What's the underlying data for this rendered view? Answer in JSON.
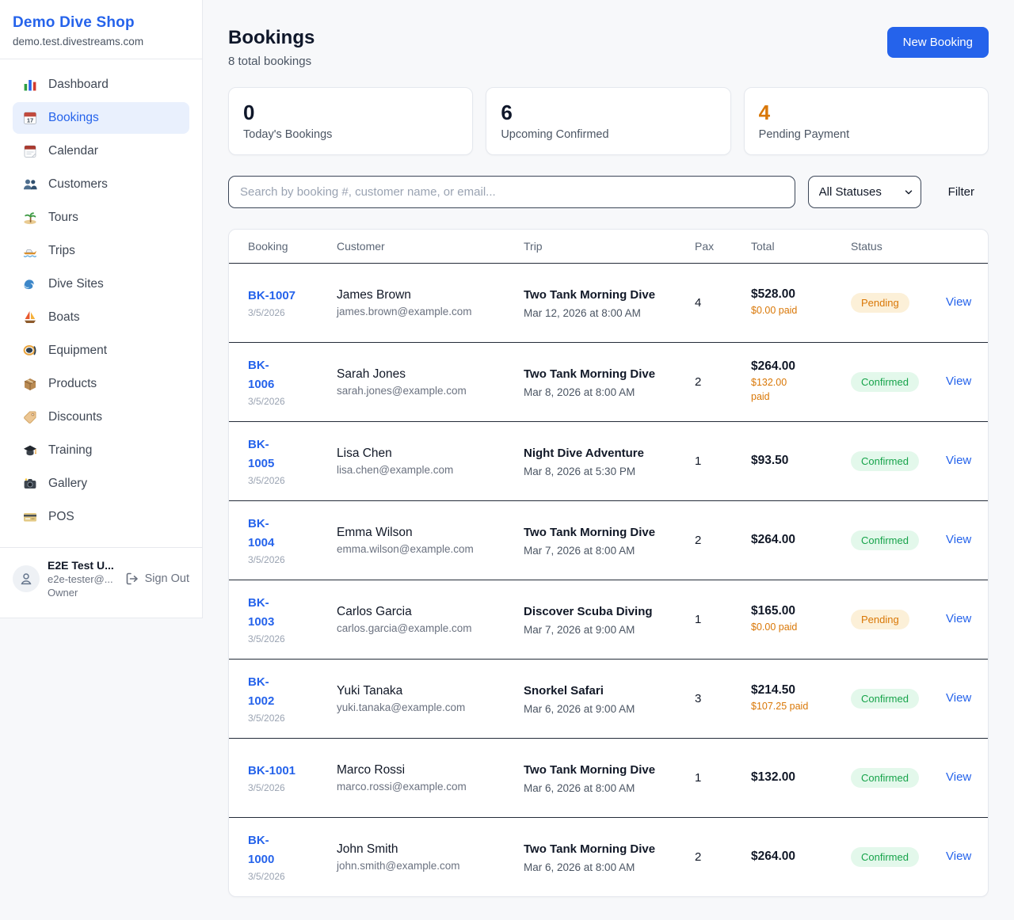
{
  "sidebar": {
    "brand": {
      "name": "Demo Dive Shop",
      "domain": "demo.test.divestreams.com"
    },
    "nav": [
      {
        "label": "Dashboard",
        "icon": "bar-chart-icon",
        "active": false
      },
      {
        "label": "Bookings",
        "icon": "calendar-date-icon",
        "active": true
      },
      {
        "label": "Calendar",
        "icon": "calendar-icon",
        "active": false
      },
      {
        "label": "Customers",
        "icon": "people-icon",
        "active": false
      },
      {
        "label": "Tours",
        "icon": "island-icon",
        "active": false
      },
      {
        "label": "Trips",
        "icon": "speedboat-icon",
        "active": false
      },
      {
        "label": "Dive Sites",
        "icon": "wave-icon",
        "active": false
      },
      {
        "label": "Boats",
        "icon": "sailboat-icon",
        "active": false
      },
      {
        "label": "Equipment",
        "icon": "diving-mask-icon",
        "active": false
      },
      {
        "label": "Products",
        "icon": "package-icon",
        "active": false
      },
      {
        "label": "Discounts",
        "icon": "tag-icon",
        "active": false
      },
      {
        "label": "Training",
        "icon": "graduation-cap-icon",
        "active": false
      },
      {
        "label": "Gallery",
        "icon": "camera-icon",
        "active": false
      },
      {
        "label": "POS",
        "icon": "credit-card-icon",
        "active": false
      }
    ],
    "user": {
      "name": "E2E Test U...",
      "email": "e2e-tester@...",
      "role": "Owner",
      "sign_out_label": "Sign Out"
    }
  },
  "header": {
    "title": "Bookings",
    "subtitle": "8 total bookings",
    "new_booking_label": "New Booking"
  },
  "stats": [
    {
      "value": "0",
      "label": "Today's Bookings",
      "color": "#0f172a"
    },
    {
      "value": "6",
      "label": "Upcoming Confirmed",
      "color": "#0f172a"
    },
    {
      "value": "4",
      "label": "Pending Payment",
      "color": "#d97706"
    }
  ],
  "filters": {
    "search_placeholder": "Search by booking #, customer name, or email...",
    "status_selected": "All Statuses",
    "filter_label": "Filter"
  },
  "table": {
    "columns": [
      "Booking",
      "Customer",
      "Trip",
      "Pax",
      "Total",
      "Status"
    ],
    "view_label": "View",
    "rows": [
      {
        "id": "BK-1007",
        "id_wrapped": false,
        "date": "3/5/2026",
        "customer": "James Brown",
        "email": "james.brown@example.com",
        "trip": "Two Tank Morning Dive",
        "trip_datetime": "Mar 12, 2026 at 8:00 AM",
        "pax": "4",
        "total": "$528.00",
        "paid": "$0.00 paid",
        "paid_wrapped": false,
        "status": "Pending"
      },
      {
        "id": "BK-1006",
        "id_wrapped": true,
        "date": "3/5/2026",
        "customer": "Sarah Jones",
        "email": "sarah.jones@example.com",
        "trip": "Two Tank Morning Dive",
        "trip_datetime": "Mar 8, 2026 at 8:00 AM",
        "pax": "2",
        "total": "$264.00",
        "paid": "$132.00 paid",
        "paid_wrapped": true,
        "status": "Confirmed"
      },
      {
        "id": "BK-1005",
        "id_wrapped": true,
        "date": "3/5/2026",
        "customer": "Lisa Chen",
        "email": "lisa.chen@example.com",
        "trip": "Night Dive Adventure",
        "trip_datetime": "Mar 8, 2026 at 5:30 PM",
        "pax": "1",
        "total": "$93.50",
        "paid": null,
        "paid_wrapped": false,
        "status": "Confirmed"
      },
      {
        "id": "BK-1004",
        "id_wrapped": true,
        "date": "3/5/2026",
        "customer": "Emma Wilson",
        "email": "emma.wilson@example.com",
        "trip": "Two Tank Morning Dive",
        "trip_datetime": "Mar 7, 2026 at 8:00 AM",
        "pax": "2",
        "total": "$264.00",
        "paid": null,
        "paid_wrapped": false,
        "status": "Confirmed"
      },
      {
        "id": "BK-1003",
        "id_wrapped": true,
        "date": "3/5/2026",
        "customer": "Carlos Garcia",
        "email": "carlos.garcia@example.com",
        "trip": "Discover Scuba Diving",
        "trip_datetime": "Mar 7, 2026 at 9:00 AM",
        "pax": "1",
        "total": "$165.00",
        "paid": "$0.00 paid",
        "paid_wrapped": false,
        "status": "Pending"
      },
      {
        "id": "BK-1002",
        "id_wrapped": true,
        "date": "3/5/2026",
        "customer": "Yuki Tanaka",
        "email": "yuki.tanaka@example.com",
        "trip": "Snorkel Safari",
        "trip_datetime": "Mar 6, 2026 at 9:00 AM",
        "pax": "3",
        "total": "$214.50",
        "paid": "$107.25 paid",
        "paid_wrapped": false,
        "status": "Confirmed"
      },
      {
        "id": "BK-1001",
        "id_wrapped": false,
        "date": "3/5/2026",
        "customer": "Marco Rossi",
        "email": "marco.rossi@example.com",
        "trip": "Two Tank Morning Dive",
        "trip_datetime": "Mar 6, 2026 at 8:00 AM",
        "pax": "1",
        "total": "$132.00",
        "paid": null,
        "paid_wrapped": false,
        "status": "Confirmed"
      },
      {
        "id": "BK-1000",
        "id_wrapped": true,
        "date": "3/5/2026",
        "customer": "John Smith",
        "email": "john.smith@example.com",
        "trip": "Two Tank Morning Dive",
        "trip_datetime": "Mar 6, 2026 at 8:00 AM",
        "pax": "2",
        "total": "$264.00",
        "paid": null,
        "paid_wrapped": false,
        "status": "Confirmed"
      }
    ]
  },
  "colors": {
    "accent": "#2563eb",
    "pending_text": "#d97706",
    "pending_bg": "#fcf0d8",
    "confirmed_text": "#16a34a",
    "confirmed_bg": "#e3f8eb",
    "paid_orange": "#d97706"
  }
}
